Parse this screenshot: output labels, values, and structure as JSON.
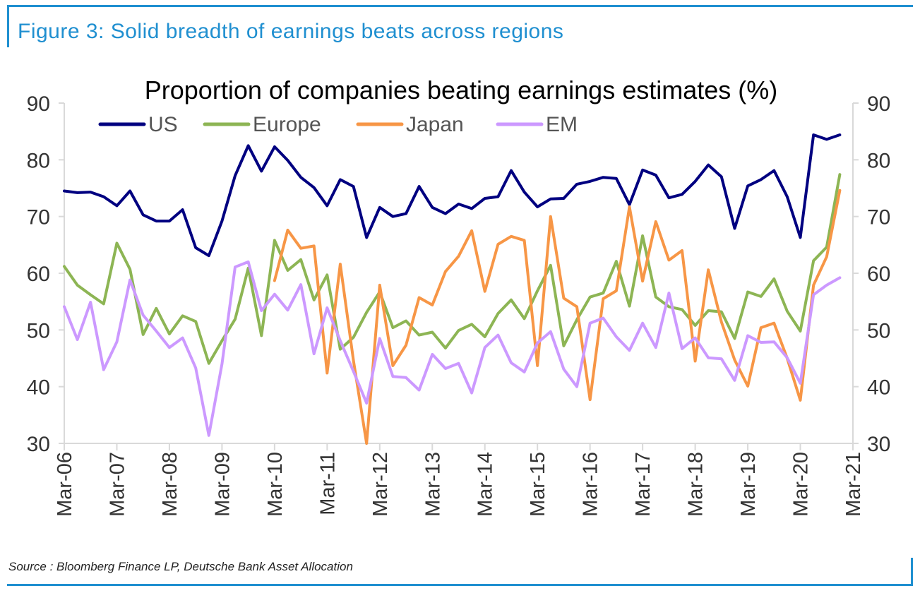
{
  "figure_title": "Figure 3: Solid breadth of earnings beats across regions",
  "source": "Source : Bloomberg Finance LP, Deutsche Bank Asset Allocation",
  "chart_data": {
    "type": "line",
    "title": "Proportion of companies beating earnings estimates (%)",
    "xlabel": "",
    "ylabel": "",
    "ylim": [
      30,
      90
    ],
    "yticks": [
      30,
      40,
      50,
      60,
      70,
      80,
      90
    ],
    "y_axis_both_sides": true,
    "grid": false,
    "legend_position": "top",
    "x_tick_labels": [
      "Mar-06",
      "Mar-07",
      "Mar-08",
      "Mar-09",
      "Mar-10",
      "Mar-11",
      "Mar-12",
      "Mar-13",
      "Mar-14",
      "Mar-15",
      "Mar-16",
      "Mar-17",
      "Mar-18",
      "Mar-19",
      "Mar-20",
      "Mar-21"
    ],
    "x_tick_quarter_index": [
      0,
      4,
      8,
      12,
      16,
      20,
      24,
      28,
      32,
      36,
      40,
      44,
      48,
      52,
      56,
      60
    ],
    "x_quarter_labels": [
      "Mar-06",
      "Jun-06",
      "Sep-06",
      "Dec-06",
      "Mar-07",
      "Jun-07",
      "Sep-07",
      "Dec-07",
      "Mar-08",
      "Jun-08",
      "Sep-08",
      "Dec-08",
      "Mar-09",
      "Jun-09",
      "Sep-09",
      "Dec-09",
      "Mar-10",
      "Jun-10",
      "Sep-10",
      "Dec-10",
      "Mar-11",
      "Jun-11",
      "Sep-11",
      "Dec-11",
      "Mar-12",
      "Jun-12",
      "Sep-12",
      "Dec-12",
      "Mar-13",
      "Jun-13",
      "Sep-13",
      "Dec-13",
      "Mar-14",
      "Jun-14",
      "Sep-14",
      "Dec-14",
      "Mar-15",
      "Jun-15",
      "Sep-15",
      "Dec-15",
      "Mar-16",
      "Jun-16",
      "Sep-16",
      "Dec-16",
      "Mar-17",
      "Jun-17",
      "Sep-17",
      "Dec-17",
      "Mar-18",
      "Jun-18",
      "Sep-18",
      "Dec-18",
      "Mar-19",
      "Jun-19",
      "Sep-19",
      "Dec-19",
      "Mar-20",
      "Jun-20",
      "Sep-20",
      "Dec-20",
      "Mar-21"
    ],
    "series": [
      {
        "name": "US",
        "color": "#000080",
        "start_index": 0,
        "values": [
          74.5,
          74.2,
          74.3,
          73.5,
          71.9,
          74.5,
          70.3,
          69.2,
          69.2,
          71.2,
          64.5,
          63.1,
          69.2,
          77.2,
          82.5,
          78.0,
          82.3,
          79.9,
          76.9,
          75.1,
          71.9,
          76.5,
          75.3,
          66.3,
          71.6,
          70.0,
          70.5,
          75.3,
          71.6,
          70.5,
          72.2,
          71.4,
          73.2,
          73.5,
          78.1,
          74.3,
          71.7,
          73.1,
          73.2,
          75.7,
          76.2,
          76.9,
          76.7,
          72.1,
          78.2,
          77.3,
          73.3,
          73.9,
          76.2,
          79.1,
          77.0,
          67.9,
          75.4,
          76.5,
          78.1,
          73.5,
          66.3,
          84.4,
          83.6,
          84.4
        ]
      },
      {
        "name": "Europe",
        "color": "#8db554",
        "start_index": 0,
        "values": [
          61.2,
          57.9,
          56.2,
          54.6,
          65.3,
          60.7,
          49.2,
          53.8,
          49.3,
          52.5,
          51.5,
          44.1,
          48.1,
          51.9,
          60.9,
          49.0,
          65.8,
          60.5,
          62.4,
          55.3,
          59.7,
          46.6,
          48.7,
          53.1,
          56.7,
          50.4,
          51.6,
          49.1,
          49.6,
          46.8,
          49.9,
          51.0,
          48.8,
          52.9,
          55.3,
          52.0,
          56.9,
          61.4,
          47.2,
          51.8,
          55.8,
          56.5,
          62.1,
          54.2,
          66.6,
          55.8,
          54.1,
          53.6,
          50.8,
          53.4,
          53.2,
          48.5,
          56.7,
          55.9,
          59.0,
          53.3,
          49.8,
          62.2,
          64.6,
          77.4
        ]
      },
      {
        "name": "Japan",
        "color": "#f79646",
        "start_index": 16,
        "values": [
          58.7,
          67.6,
          64.4,
          64.8,
          42.4,
          61.6,
          44.6,
          30.0,
          57.9,
          43.7,
          47.3,
          55.7,
          54.4,
          60.3,
          63.0,
          67.5,
          56.8,
          65.1,
          66.5,
          65.8,
          43.7,
          70.0,
          55.6,
          54.1,
          37.7,
          55.5,
          56.9,
          71.7,
          58.6,
          69.1,
          62.3,
          64.0,
          44.5,
          60.6,
          51.4,
          44.7,
          40.1,
          50.4,
          51.2,
          45.0,
          37.6,
          57.9,
          62.9,
          74.6
        ]
      },
      {
        "name": "EM",
        "color": "#cc99ff",
        "start_index": 0,
        "values": [
          54.1,
          48.3,
          54.9,
          43.0,
          47.9,
          58.8,
          52.6,
          49.8,
          46.9,
          48.6,
          43.3,
          31.4,
          44.0,
          61.1,
          62.0,
          53.4,
          56.3,
          53.5,
          58.0,
          45.8,
          53.9,
          48.1,
          42.7,
          37.1,
          48.5,
          41.8,
          41.6,
          39.4,
          45.7,
          43.2,
          44.1,
          38.9,
          46.9,
          49.1,
          44.2,
          42.6,
          47.7,
          49.7,
          43.1,
          40.0,
          51.2,
          52.1,
          48.8,
          46.4,
          51.2,
          46.9,
          56.5,
          46.7,
          48.6,
          45.1,
          44.9,
          41.1,
          49.0,
          47.8,
          47.9,
          45.1,
          40.6,
          56.2,
          57.9,
          59.2
        ]
      }
    ]
  }
}
